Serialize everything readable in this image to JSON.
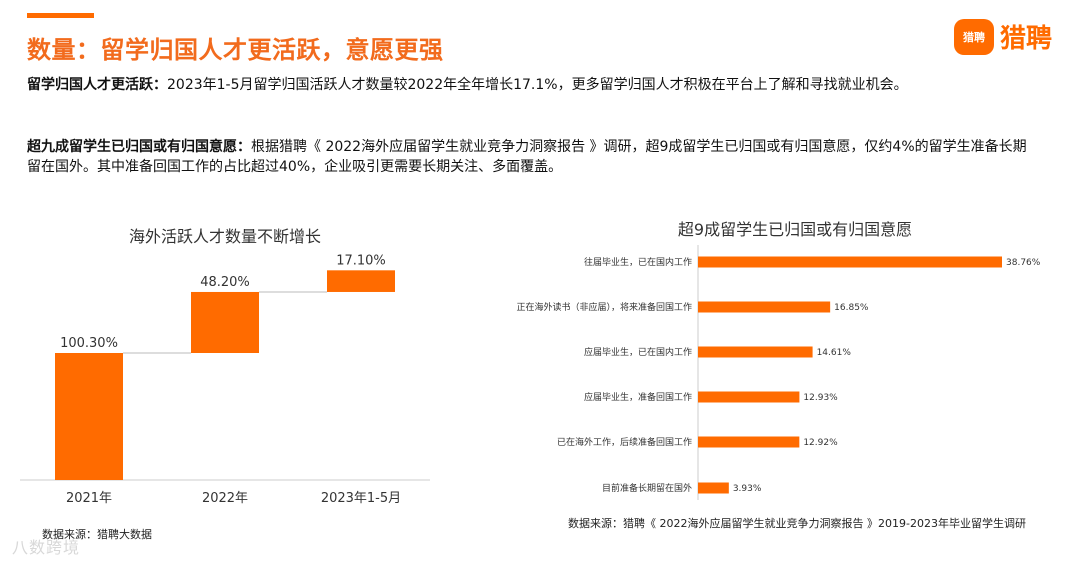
{
  "header": {
    "title": "数量：留学归国人才更活跃，意愿更强",
    "logo_badge": "猎聘",
    "logo_text": "猎聘"
  },
  "paragraphs": {
    "p1_bold": "留学归国人才更活跃：",
    "p1_text": "2023年1-5月留学归国活跃人才数量较2022年全年增长17.1%，更多留学归国人才积极在平台上了解和寻找就业机会。",
    "p2_bold": "超九成留学生已归国或有归国意愿：",
    "p2_text": "根据猎聘《 2022海外应届留学生就业竞争力洞察报告 》调研，超9成留学生已归国或有归国意愿，仅约4%的留学生准备长期留在国外。其中准备回国工作的占比超过40%，企业吸引更需要长期关注、多面覆盖。"
  },
  "colors": {
    "accent": "#ff6b00",
    "title": "#f26b1d"
  },
  "chart_data": [
    {
      "type": "bar",
      "subtype": "waterfall",
      "title": "海外活跃人才数量不断增长",
      "categories": [
        "2021年",
        "2022年",
        "2023年1-5月"
      ],
      "values": [
        100.3,
        48.2,
        17.1
      ],
      "labels": [
        "100.30%",
        "48.20%",
        "17.10%"
      ],
      "source": "数据来源：猎聘大数据"
    },
    {
      "type": "bar",
      "orientation": "horizontal",
      "title": "超9成留学生已归国或有归国意愿",
      "categories": [
        "往届毕业生，已在国内工作",
        "正在海外读书（非应届），将来准备回国工作",
        "应届毕业生，已在国内工作",
        "应届毕业生，准备回国工作",
        "已在海外工作，后续准备回国工作",
        "目前准备长期留在国外"
      ],
      "values": [
        38.76,
        16.85,
        14.61,
        12.93,
        12.92,
        3.93
      ],
      "labels": [
        "38.76%",
        "16.85%",
        "14.61%",
        "12.93%",
        "12.92%",
        "3.93%"
      ],
      "source": "数据来源：猎聘《 2022海外应届留学生就业竞争力洞察报告 》2019-2023年毕业留学生调研"
    }
  ],
  "watermark": "八数跨境"
}
